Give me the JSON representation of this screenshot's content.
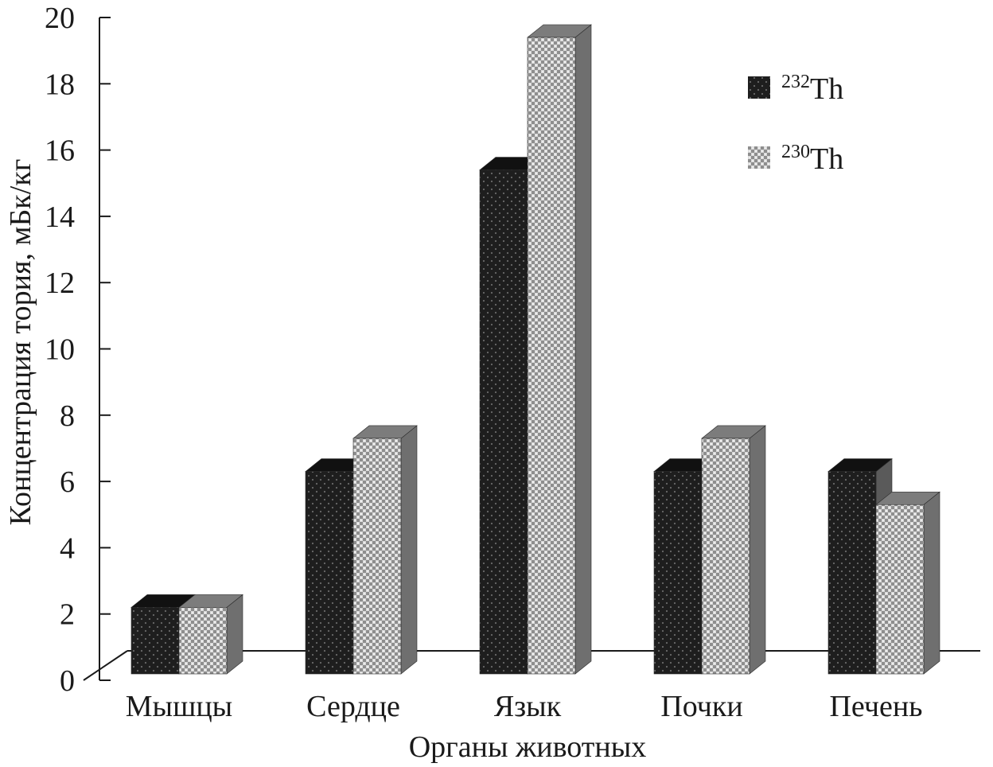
{
  "chart_data": {
    "type": "bar",
    "title": "",
    "xlabel": "Органы животных",
    "ylabel": "Концентрация тория, мБк/кг",
    "ylim": [
      0,
      20
    ],
    "yticks": [
      "0",
      "2",
      "4",
      "6",
      "8",
      "10",
      "12",
      "14",
      "16",
      "18",
      "20"
    ],
    "categories": [
      "Мышцы",
      "Сердце",
      "Язык",
      "Почки",
      "Печень"
    ],
    "series": [
      {
        "name": "232Th",
        "mass": "232",
        "symbol": "Th",
        "values": [
          2.2,
          6.3,
          15.4,
          6.3,
          6.3
        ],
        "pattern": "dark-dotted"
      },
      {
        "name": "230Th",
        "mass": "230",
        "symbol": "Th",
        "values": [
          2.2,
          7.3,
          19.4,
          7.3,
          5.3
        ],
        "pattern": "light-checkered"
      }
    ],
    "legend_position": "top-right",
    "grid": false
  },
  "colors": {
    "series_232_face": "#1e1e1e",
    "series_232_side": "#5a5a5a",
    "series_230_face": "#a9a9a9",
    "series_230_side": "#6f6f6f",
    "axis": "#1a1a1a"
  }
}
